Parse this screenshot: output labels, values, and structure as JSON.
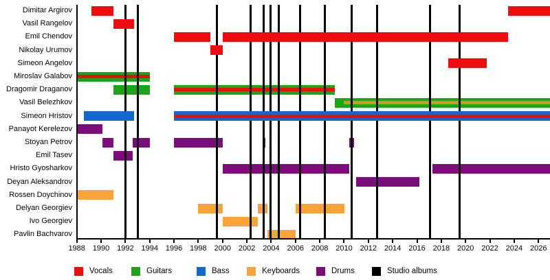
{
  "chart_data": {
    "type": "bar",
    "subtype": "band-member-gantt-timeline",
    "title": "",
    "xlabel": "",
    "ylabel": "",
    "grid": false,
    "legend_position": "bottom",
    "x_axis": {
      "min": 1988,
      "max": 2027,
      "tick_step": 2,
      "tick_labels": [
        "1988",
        "1990",
        "1992",
        "1994",
        "1996",
        "1998",
        "2000",
        "2002",
        "2004",
        "2006",
        "2008",
        "2010",
        "2012",
        "2014",
        "2016",
        "2018",
        "2020",
        "2022",
        "2024",
        "2026"
      ]
    },
    "roles": {
      "vocals": "#EE0D0D",
      "guitars": "#1BA51B",
      "bass": "#1269CA",
      "keyboards": "#F9A338",
      "drums": "#7B0E7B",
      "albums": "#000000"
    },
    "stripe_colors": {
      "vocals": "#EE0D0D",
      "keyboards": "#C89B28"
    },
    "members": [
      {
        "name": "Dimitar Argirov",
        "segments": [
          {
            "role": "vocals",
            "from": 1989.2,
            "till": 1991.0
          },
          {
            "role": "vocals",
            "from": 2023.5,
            "till": 2027
          }
        ]
      },
      {
        "name": "Vasil Rangelov",
        "segments": [
          {
            "role": "vocals",
            "from": 1991.0,
            "till": 1992.7
          }
        ]
      },
      {
        "name": "Emil Chendov",
        "segments": [
          {
            "role": "vocals",
            "from": 1996.0,
            "till": 1999.0
          },
          {
            "role": "vocals",
            "from": 2000.0,
            "till": 2023.5
          }
        ]
      },
      {
        "name": "Nikolay Urumov",
        "segments": [
          {
            "role": "vocals",
            "from": 1999.0,
            "till": 2000.0
          }
        ]
      },
      {
        "name": "Simeon Angelov",
        "segments": [
          {
            "role": "vocals",
            "from": 2018.55,
            "till": 2021.75
          }
        ]
      },
      {
        "name": "Miroslav Galabov",
        "segments": [
          {
            "role": "guitars",
            "from": 1988.0,
            "till": 1994.0,
            "stripe": {
              "role": "vocals",
              "from": 1988.0,
              "till": 1994.0
            }
          }
        ]
      },
      {
        "name": "Dragomir Draganov",
        "segments": [
          {
            "role": "guitars",
            "from": 1991.0,
            "till": 1994.0
          },
          {
            "role": "guitars",
            "from": 1996.0,
            "till": 2009.25,
            "stripe": {
              "role": "vocals",
              "from": 1996.0,
              "till": 2009.25
            }
          }
        ]
      },
      {
        "name": "Vasil Belezhkov",
        "segments": [
          {
            "role": "guitars",
            "from": 2009.25,
            "till": 2027,
            "stripe": {
              "role": "keyboards",
              "from": 2010.0,
              "till": 2027
            }
          }
        ]
      },
      {
        "name": "Simeon Hristov",
        "segments": [
          {
            "role": "bass",
            "from": 1988.6,
            "till": 1992.7
          },
          {
            "role": "bass",
            "from": 1996.0,
            "till": 2027,
            "stripe": {
              "role": "vocals",
              "from": 1996.0,
              "till": 2027
            }
          }
        ]
      },
      {
        "name": "Panayot Kerelezov",
        "segments": [
          {
            "role": "drums",
            "from": 1988.0,
            "till": 1990.1
          }
        ]
      },
      {
        "name": "Stoyan Petrov",
        "segments": [
          {
            "role": "drums",
            "from": 1990.1,
            "till": 1991.0
          },
          {
            "role": "drums",
            "from": 1992.6,
            "till": 1994.0
          },
          {
            "role": "drums",
            "from": 1996.0,
            "till": 2000.0
          },
          {
            "role": "drums",
            "from": 2003.3,
            "till": 2003.5
          },
          {
            "role": "drums",
            "from": 2010.45,
            "till": 2010.8
          }
        ]
      },
      {
        "name": "Emil Tasev",
        "segments": [
          {
            "role": "drums",
            "from": 1991.0,
            "till": 1992.6
          }
        ]
      },
      {
        "name": "Hristo Gyosharkov",
        "segments": [
          {
            "role": "drums",
            "from": 2000.0,
            "till": 2010.45
          },
          {
            "role": "drums",
            "from": 2017.3,
            "till": 2027
          }
        ]
      },
      {
        "name": "Deyan Aleksandrov",
        "segments": [
          {
            "role": "drums",
            "from": 2011.0,
            "till": 2016.2
          }
        ]
      },
      {
        "name": "Rossen Doychinov",
        "segments": [
          {
            "role": "keyboards",
            "from": 1988.0,
            "till": 1991.0
          }
        ]
      },
      {
        "name": "Delyan Georgiev",
        "segments": [
          {
            "role": "keyboards",
            "from": 1998.0,
            "till": 2000.0
          },
          {
            "role": "keyboards",
            "from": 2002.9,
            "till": 2003.7
          },
          {
            "role": "keyboards",
            "from": 2006.0,
            "till": 2010.05
          }
        ]
      },
      {
        "name": "Ivo Georgiev",
        "segments": [
          {
            "role": "keyboards",
            "from": 2000.0,
            "till": 2002.9
          }
        ]
      },
      {
        "name": "Pavlin Bachvarov",
        "segments": [
          {
            "role": "keyboards",
            "from": 2003.7,
            "till": 2006.0
          }
        ]
      }
    ],
    "album_years": [
      1992.0,
      1993.0,
      1999.55,
      2002.3,
      2003.4,
      2003.95,
      2004.6,
      2006.4,
      2008.4,
      2010.65,
      2012.7,
      2017.1,
      2019.5
    ]
  },
  "legend": {
    "items": [
      {
        "label": "Vocals",
        "color": "#EE0D0D"
      },
      {
        "label": "Guitars",
        "color": "#1BA51B"
      },
      {
        "label": "Bass",
        "color": "#1269CA"
      },
      {
        "label": "Keyboards",
        "color": "#F9A338"
      },
      {
        "label": "Drums",
        "color": "#7B0E7B"
      },
      {
        "label": "Studio albums",
        "color": "#000000"
      }
    ]
  }
}
